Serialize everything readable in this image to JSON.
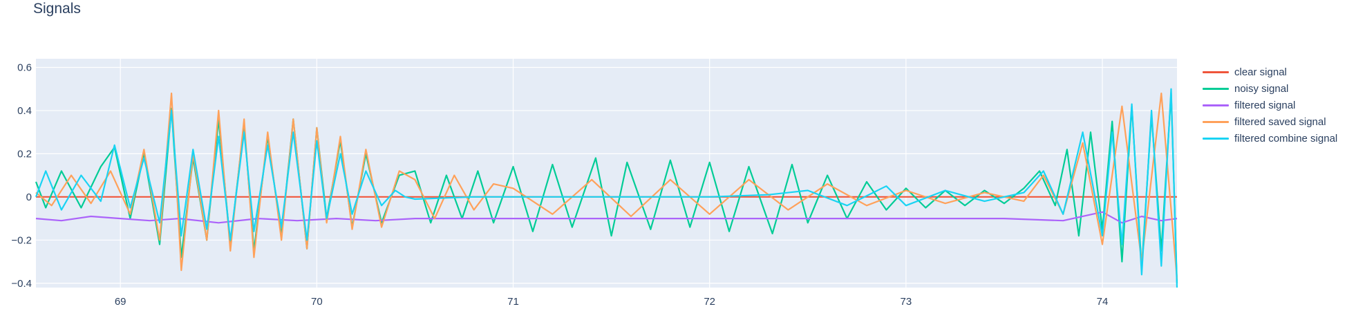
{
  "chart_data": {
    "type": "line",
    "title": "Signals",
    "xlabel": "",
    "ylabel": "",
    "xlim": [
      68.57,
      74.38
    ],
    "ylim": [
      -0.42,
      0.64
    ],
    "grid": true,
    "legend_position": "top-right",
    "x_ticks": [
      {
        "value": 69,
        "label": "69"
      },
      {
        "value": 70,
        "label": "70"
      },
      {
        "value": 71,
        "label": "71"
      },
      {
        "value": 72,
        "label": "72"
      },
      {
        "value": 73,
        "label": "73"
      },
      {
        "value": 74,
        "label": "74"
      }
    ],
    "y_ticks": [
      {
        "value": 0.6,
        "label": "0.6"
      },
      {
        "value": 0.4,
        "label": "0.4"
      },
      {
        "value": 0.2,
        "label": "0.2"
      },
      {
        "value": 0,
        "label": "0"
      },
      {
        "value": -0.2,
        "label": "−0.2"
      },
      {
        "value": -0.4,
        "label": "−0.4"
      }
    ],
    "series": [
      {
        "name": "clear signal",
        "color": "#EF553B",
        "x": [
          68.57,
          69.0,
          69.5,
          70.0,
          70.5,
          71.0,
          71.5,
          72.0,
          72.5,
          73.0,
          73.5,
          74.0,
          74.38
        ],
        "y": [
          0,
          0,
          0,
          0,
          0,
          0,
          0,
          0,
          0,
          0,
          0,
          0,
          0
        ]
      },
      {
        "name": "noisy signal",
        "color": "#00CC96",
        "x": [
          68.57,
          68.62,
          68.7,
          68.8,
          68.9,
          68.97,
          69.05,
          69.12,
          69.2,
          69.26,
          69.31,
          69.37,
          69.44,
          69.5,
          69.56,
          69.63,
          69.68,
          69.75,
          69.82,
          69.88,
          69.95,
          70.0,
          70.05,
          70.12,
          70.18,
          70.25,
          70.33,
          70.42,
          70.5,
          70.58,
          70.66,
          70.74,
          70.82,
          70.9,
          71.0,
          71.1,
          71.2,
          71.3,
          71.42,
          71.5,
          71.58,
          71.7,
          71.8,
          71.9,
          72.0,
          72.1,
          72.2,
          72.32,
          72.42,
          72.5,
          72.6,
          72.7,
          72.8,
          72.9,
          73.0,
          73.1,
          73.2,
          73.3,
          73.4,
          73.5,
          73.6,
          73.68,
          73.76,
          73.82,
          73.88,
          73.94,
          74.0,
          74.05,
          74.1,
          74.15,
          74.2,
          74.25,
          74.3,
          74.35,
          74.38
        ],
        "y": [
          0.07,
          -0.05,
          0.12,
          -0.05,
          0.14,
          0.23,
          -0.1,
          0.2,
          -0.22,
          0.41,
          -0.28,
          0.18,
          -0.2,
          0.36,
          -0.22,
          0.34,
          -0.25,
          0.28,
          -0.18,
          0.36,
          -0.24,
          0.32,
          -0.1,
          0.26,
          -0.14,
          0.2,
          -0.12,
          0.1,
          0.12,
          -0.12,
          0.1,
          -0.1,
          0.12,
          -0.12,
          0.14,
          -0.16,
          0.15,
          -0.14,
          0.18,
          -0.18,
          0.16,
          -0.15,
          0.17,
          -0.14,
          0.16,
          -0.16,
          0.14,
          -0.17,
          0.15,
          -0.12,
          0.1,
          -0.1,
          0.07,
          -0.06,
          0.04,
          -0.05,
          0.03,
          -0.04,
          0.03,
          -0.03,
          0.04,
          0.12,
          -0.04,
          0.22,
          -0.18,
          0.3,
          -0.15,
          0.35,
          -0.3,
          0.42,
          -0.33,
          0.38,
          -0.25,
          0.48,
          -0.4
        ]
      },
      {
        "name": "filtered signal",
        "color": "#AB63FA",
        "x": [
          68.57,
          68.7,
          68.85,
          69.0,
          69.15,
          69.3,
          69.5,
          69.7,
          69.9,
          70.1,
          70.3,
          70.5,
          70.8,
          71.1,
          71.5,
          72.0,
          72.5,
          73.0,
          73.5,
          73.8,
          74.0,
          74.1,
          74.2,
          74.3,
          74.38
        ],
        "y": [
          -0.1,
          -0.11,
          -0.09,
          -0.1,
          -0.11,
          -0.1,
          -0.12,
          -0.1,
          -0.11,
          -0.1,
          -0.11,
          -0.1,
          -0.1,
          -0.1,
          -0.1,
          -0.1,
          -0.1,
          -0.1,
          -0.1,
          -0.11,
          -0.07,
          -0.12,
          -0.09,
          -0.11,
          -0.1
        ]
      },
      {
        "name": "filtered saved signal",
        "color": "#FFA15A",
        "x": [
          68.57,
          68.65,
          68.75,
          68.85,
          68.95,
          69.05,
          69.12,
          69.2,
          69.26,
          69.31,
          69.37,
          69.44,
          69.5,
          69.56,
          69.63,
          69.68,
          69.75,
          69.82,
          69.88,
          69.95,
          70.0,
          70.05,
          70.12,
          70.18,
          70.25,
          70.33,
          70.42,
          70.5,
          70.6,
          70.7,
          70.8,
          70.9,
          71.0,
          71.2,
          71.4,
          71.6,
          71.8,
          72.0,
          72.2,
          72.4,
          72.6,
          72.8,
          73.0,
          73.2,
          73.4,
          73.6,
          73.7,
          73.8,
          73.9,
          74.0,
          74.1,
          74.2,
          74.3,
          74.38
        ],
        "y": [
          0.02,
          -0.04,
          0.1,
          -0.03,
          0.12,
          -0.08,
          0.22,
          -0.2,
          0.48,
          -0.34,
          0.2,
          -0.2,
          0.4,
          -0.25,
          0.36,
          -0.28,
          0.3,
          -0.2,
          0.36,
          -0.24,
          0.32,
          -0.12,
          0.28,
          -0.15,
          0.22,
          -0.14,
          0.12,
          0.08,
          -0.1,
          0.1,
          -0.06,
          0.06,
          0.04,
          -0.08,
          0.08,
          -0.09,
          0.08,
          -0.08,
          0.08,
          -0.06,
          0.06,
          -0.04,
          0.03,
          -0.03,
          0.02,
          -0.02,
          0.1,
          -0.08,
          0.25,
          -0.22,
          0.42,
          -0.3,
          0.48,
          -0.38
        ]
      },
      {
        "name": "filtered combine signal",
        "color": "#19D3F3",
        "x": [
          68.57,
          68.62,
          68.7,
          68.8,
          68.9,
          68.97,
          69.05,
          69.12,
          69.2,
          69.26,
          69.31,
          69.37,
          69.44,
          69.5,
          69.56,
          69.63,
          69.68,
          69.75,
          69.82,
          69.88,
          69.95,
          70.0,
          70.05,
          70.12,
          70.18,
          70.25,
          70.33,
          70.4,
          70.45,
          70.5,
          70.8,
          71.0,
          71.5,
          72.0,
          72.3,
          72.5,
          72.7,
          72.9,
          73.0,
          73.2,
          73.4,
          73.6,
          73.7,
          73.8,
          73.9,
          74.0,
          74.05,
          74.1,
          74.15,
          74.2,
          74.25,
          74.3,
          74.35,
          74.38
        ],
        "y": [
          0.0,
          0.12,
          -0.06,
          0.1,
          -0.02,
          0.24,
          -0.05,
          0.18,
          -0.12,
          0.4,
          -0.18,
          0.22,
          -0.15,
          0.28,
          -0.2,
          0.3,
          -0.16,
          0.24,
          -0.14,
          0.3,
          -0.2,
          0.26,
          -0.1,
          0.2,
          -0.08,
          0.12,
          -0.04,
          0.03,
          0.0,
          -0.01,
          0.0,
          0.0,
          0.0,
          0.0,
          0.01,
          0.03,
          -0.04,
          0.05,
          -0.04,
          0.03,
          -0.02,
          0.02,
          0.12,
          -0.08,
          0.3,
          -0.18,
          0.3,
          -0.22,
          0.43,
          -0.36,
          0.4,
          -0.32,
          0.5,
          -0.42
        ]
      }
    ]
  }
}
